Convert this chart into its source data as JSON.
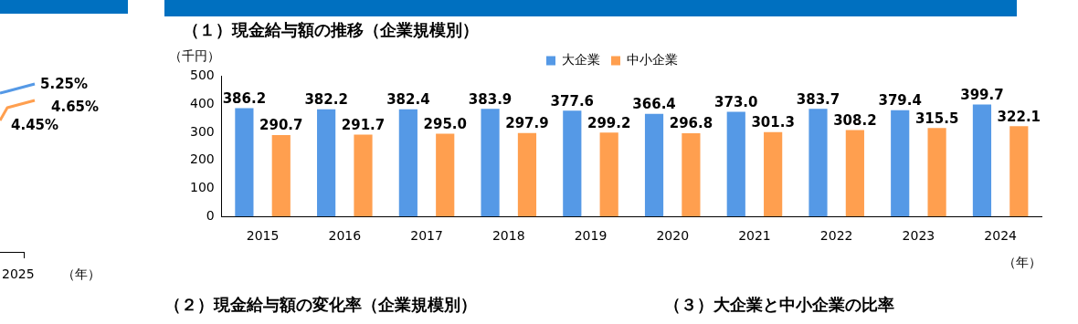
{
  "chart_data": [
    {
      "type": "other",
      "annotations": [
        "5.25%",
        "4.65%",
        "4.45%",
        "2025",
        "（年）"
      ]
    },
    {
      "type": "bar",
      "title": "（１）現金給与額の推移（企業規模別）",
      "ylabel": "（千円）",
      "xlabel": "（年）",
      "categories": [
        "2015",
        "2016",
        "2017",
        "2018",
        "2019",
        "2020",
        "2021",
        "2022",
        "2023",
        "2024"
      ],
      "series": [
        {
          "name": "大企業",
          "color": "#5599e6",
          "values": [
            386.2,
            382.2,
            382.4,
            383.9,
            377.6,
            366.4,
            373.0,
            383.7,
            379.4,
            399.7
          ]
        },
        {
          "name": "中小企業",
          "color": "#ff9f4f",
          "values": [
            290.7,
            291.7,
            295.0,
            297.9,
            299.2,
            296.8,
            301.3,
            308.2,
            315.5,
            322.1
          ]
        }
      ],
      "value_labels": [
        [
          "386.2",
          "382.2",
          "382.4",
          "383.9",
          "377.6",
          "366.4",
          "373.0",
          "383.7",
          "379.4",
          "399.7"
        ],
        [
          "290.7",
          "291.7",
          "295.0",
          "297.9",
          "299.2",
          "296.8",
          "301.3",
          "308.2",
          "315.5",
          "322.1"
        ]
      ],
      "ylim": [
        0,
        500
      ],
      "yticks": [
        0,
        100,
        200,
        300,
        400,
        500
      ],
      "grid": false,
      "legend": "top",
      "annotations": [
        "（２）現金給与額の変化率（企業規模別）",
        "（３）大企業と中小企業の比率"
      ]
    }
  ]
}
